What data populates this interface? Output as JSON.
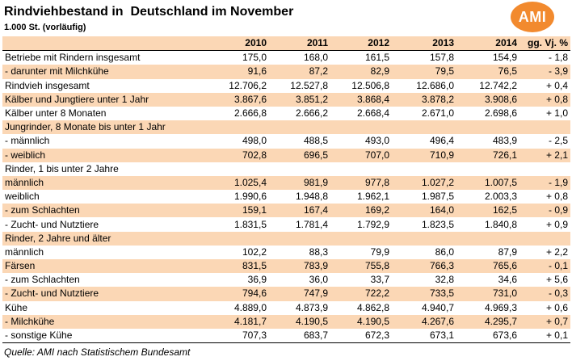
{
  "header": {
    "title": "Rindviehbestand in  Deutschland im November",
    "subtitle": "1.000 St. (vorläufig)",
    "logo_text": "AMI",
    "logo_color": "#f28a2e"
  },
  "table": {
    "shade_color": "#fbd7b5",
    "columns": [
      "",
      "2010",
      "2011",
      "2012",
      "2013",
      "2014",
      "gg. Vj.  %"
    ],
    "rows": [
      {
        "label": "Betriebe mit Rindern insgesamt",
        "values": [
          "175,0",
          "168,0",
          "161,5",
          "157,8",
          "154,9",
          "- 1,8"
        ],
        "shaded": false
      },
      {
        "label": " - darunter mit Milchkühe",
        "values": [
          "91,6",
          "87,2",
          "82,9",
          "79,5",
          "76,5",
          "- 3,9"
        ],
        "shaded": true
      },
      {
        "label": "Rindvieh insgesamt",
        "values": [
          "12.706,2",
          "12.527,8",
          "12.506,8",
          "12.686,0",
          "12.742,2",
          "+ 0,4"
        ],
        "shaded": false
      },
      {
        "label": " Kälber und Jungtiere unter 1 Jahr",
        "values": [
          "3.867,6",
          "3.851,2",
          "3.868,4",
          "3.878,2",
          "3.908,6",
          "+ 0,8"
        ],
        "shaded": true
      },
      {
        "label": "  Kälber unter 8 Monaten",
        "values": [
          "2.666,8",
          "2.666,2",
          "2.668,4",
          "2.671,0",
          "2.698,6",
          "+ 1,0"
        ],
        "shaded": false
      },
      {
        "label": "Jungrinder, 8 Monate bis unter 1 Jahr",
        "values": [
          "",
          "",
          "",
          "",
          "",
          ""
        ],
        "shaded": true
      },
      {
        "label": " - männlich",
        "values": [
          "498,0",
          "488,5",
          "493,0",
          "496,4",
          "483,9",
          "- 2,5"
        ],
        "shaded": false
      },
      {
        "label": " - weiblich",
        "values": [
          "702,8",
          "696,5",
          "707,0",
          "710,9",
          "726,1",
          "+ 2,1"
        ],
        "shaded": true
      },
      {
        "label": "Rinder, 1 bis unter 2 Jahre",
        "values": [
          "",
          "",
          "",
          "",
          "",
          ""
        ],
        "shaded": false
      },
      {
        "label": " männlich",
        "values": [
          "1.025,4",
          "981,9",
          "977,8",
          "1.027,2",
          "1.007,5",
          "- 1,9"
        ],
        "shaded": true
      },
      {
        "label": " weiblich",
        "values": [
          "1.990,6",
          "1.948,8",
          "1.962,1",
          "1.987,5",
          "2.003,3",
          "+ 0,8"
        ],
        "shaded": false
      },
      {
        "label": " - zum Schlachten",
        "values": [
          "159,1",
          "167,4",
          "169,2",
          "164,0",
          "162,5",
          "- 0,9"
        ],
        "shaded": true
      },
      {
        "label": " - Zucht- und Nutztiere",
        "values": [
          "1.831,5",
          "1.781,4",
          "1.792,9",
          "1.823,5",
          "1.840,8",
          "+ 0,9"
        ],
        "shaded": false
      },
      {
        "label": "Rinder, 2 Jahre und älter",
        "values": [
          "",
          "",
          "",
          "",
          "",
          ""
        ],
        "shaded": true
      },
      {
        "label": " männlich",
        "values": [
          "102,2",
          "88,3",
          "79,9",
          "86,0",
          "87,9",
          "+ 2,2"
        ],
        "shaded": false
      },
      {
        "label": " Färsen",
        "values": [
          "831,5",
          "783,9",
          "755,8",
          "766,3",
          "765,6",
          "- 0,1"
        ],
        "shaded": true
      },
      {
        "label": " - zum Schlachten",
        "values": [
          "36,9",
          "36,0",
          "33,7",
          "32,8",
          "34,6",
          "+ 5,6"
        ],
        "shaded": false
      },
      {
        "label": " - Zucht- und Nutztiere",
        "values": [
          "794,6",
          "747,9",
          "722,2",
          "733,5",
          "731,0",
          "- 0,3"
        ],
        "shaded": true
      },
      {
        "label": " Kühe",
        "values": [
          "4.889,0",
          "4.873,9",
          "4.862,8",
          "4.940,7",
          "4.969,3",
          "+ 0,6"
        ],
        "shaded": false
      },
      {
        "label": " - Milchkühe",
        "values": [
          "4.181,7",
          "4.190,5",
          "4.190,5",
          "4.267,6",
          "4.295,7",
          "+ 0,7"
        ],
        "shaded": true
      },
      {
        "label": " - sonstige Kühe",
        "values": [
          "707,3",
          "683,7",
          "672,3",
          "673,1",
          "673,6",
          "+ 0,1"
        ],
        "shaded": false
      }
    ]
  },
  "footer": {
    "source": "Quelle: AMI nach Statistischem Bundesamt"
  }
}
